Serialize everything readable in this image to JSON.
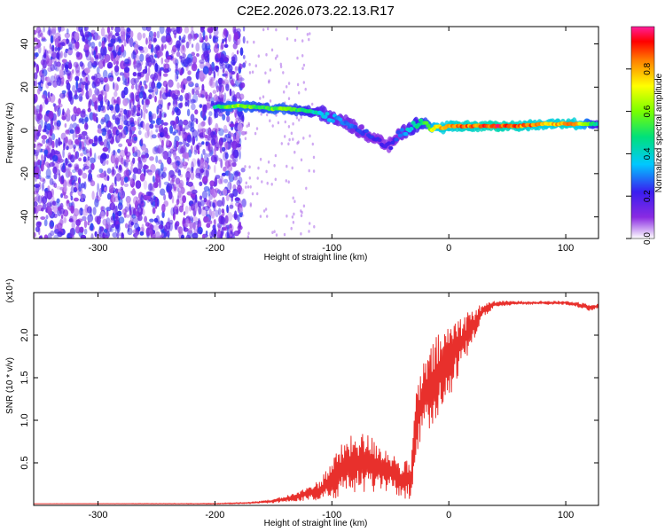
{
  "figure": {
    "title": "C2E2.2026.073.22.13.R17"
  },
  "chart_data": [
    {
      "type": "heatmap",
      "xlabel": "Height of straight line (km)",
      "ylabel": "Frequency (Hz)",
      "xlim": [
        -355,
        128
      ],
      "ylim": [
        -50,
        48
      ],
      "xticks": [
        -300,
        -200,
        -100,
        0,
        100
      ],
      "yticks": [
        -40,
        -20,
        0,
        20,
        40
      ],
      "colorbar": {
        "label": "Normalized spectral amplitude",
        "range": [
          0,
          1
        ],
        "ticks": [
          "0.0",
          "0.2",
          "0.4",
          "0.6",
          "0.8"
        ],
        "tick_values": [
          0.0,
          0.2,
          0.4,
          0.6,
          0.8
        ]
      },
      "ridge": {
        "x": [
          -200,
          -190,
          -180,
          -170,
          -160,
          -150,
          -140,
          -130,
          -120,
          -110,
          -100,
          -90,
          -80,
          -70,
          -60,
          -50,
          -45,
          -40,
          -35,
          -30,
          -25,
          -20,
          -15,
          -10,
          -5,
          0,
          10,
          20,
          40,
          60,
          80,
          90,
          100,
          110,
          120,
          128
        ],
        "y": [
          11,
          11,
          11.5,
          11,
          10.5,
          10,
          10,
          9.5,
          9,
          8,
          6,
          4,
          1,
          -2,
          -5,
          -7,
          -3,
          -1,
          0,
          2,
          3,
          4,
          0,
          2,
          1,
          2,
          2,
          2,
          2,
          2,
          3,
          3,
          3,
          3,
          3,
          3
        ],
        "amplitude": [
          0.45,
          0.6,
          0.65,
          0.6,
          0.55,
          0.6,
          0.6,
          0.55,
          0.5,
          0.4,
          0.35,
          0.3,
          0.28,
          0.25,
          0.22,
          0.2,
          0.25,
          0.3,
          0.4,
          0.45,
          0.5,
          0.55,
          0.7,
          0.8,
          0.85,
          0.85,
          0.9,
          0.9,
          0.95,
          0.9,
          0.85,
          0.85,
          0.9,
          0.85,
          0.6,
          0.4
        ]
      },
      "noise_region": {
        "x": [
          -355,
          -175
        ],
        "amplitude": 0.15
      }
    },
    {
      "type": "line",
      "xlabel": "Height of straight line (km)",
      "ylabel": "SNR (10 * v/v)",
      "scale_label": "(x10⁴)",
      "xlim": [
        -355,
        128
      ],
      "ylim": [
        0,
        2.5
      ],
      "xticks": [
        -300,
        -200,
        -100,
        0,
        100
      ],
      "yticks": [
        0.5,
        1.0,
        1.5,
        2.0
      ],
      "ytick_labels": [
        "0.5",
        "1.0",
        "1.5",
        "2.0"
      ],
      "series": [
        {
          "color": "#e8302c",
          "x": [
            -355,
            -200,
            -170,
            -150,
            -130,
            -110,
            -100,
            -90,
            -80,
            -70,
            -60,
            -50,
            -40,
            -32,
            -28,
            -20,
            -10,
            0,
            10,
            20,
            30,
            40,
            60,
            80,
            100,
            110,
            120,
            128
          ],
          "y": [
            0.02,
            0.02,
            0.03,
            0.05,
            0.1,
            0.18,
            0.3,
            0.45,
            0.5,
            0.5,
            0.45,
            0.4,
            0.3,
            0.3,
            1.0,
            1.3,
            1.5,
            1.7,
            1.9,
            2.1,
            2.3,
            2.37,
            2.38,
            2.38,
            2.38,
            2.36,
            2.33,
            2.34
          ],
          "spread": [
            0.0,
            0.005,
            0.01,
            0.02,
            0.05,
            0.12,
            0.25,
            0.3,
            0.35,
            0.35,
            0.3,
            0.25,
            0.2,
            0.25,
            0.4,
            0.45,
            0.5,
            0.45,
            0.35,
            0.2,
            0.08,
            0.03,
            0.02,
            0.02,
            0.02,
            0.03,
            0.04,
            0.03
          ]
        }
      ]
    }
  ]
}
